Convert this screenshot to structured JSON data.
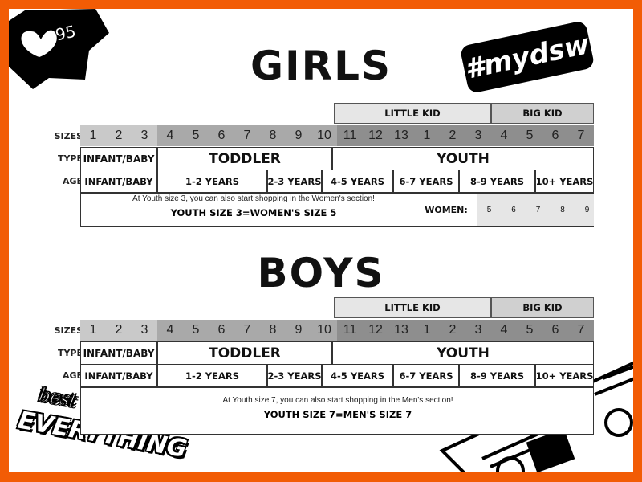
{
  "badge": {
    "icon": "heart-icon",
    "count": "95"
  },
  "sticker_top_right": "#mydsw",
  "sticker_bottom_left": {
    "line1": "best of",
    "line2": "EVERYTHING"
  },
  "colors": {
    "border": "#f25c05",
    "size_infant": "#c9c9c9",
    "size_toddler": "#a9a9a9",
    "size_youth": "#8e8e8e",
    "little_kid": "#e6e6e6",
    "big_kid": "#d0d0d0",
    "women_sizes": "#e6e6e6"
  },
  "row_labels": {
    "sizes": "SIZES",
    "type": "TYPE",
    "age": "AGE"
  },
  "groups": {
    "little_kid": "LITTLE KID",
    "big_kid": "BIG KID"
  },
  "sizes": [
    "1",
    "2",
    "3",
    "4",
    "5",
    "6",
    "7",
    "8",
    "9",
    "10",
    "11",
    "12",
    "13",
    "1",
    "2",
    "3",
    "4",
    "5",
    "6",
    "7"
  ],
  "types": [
    "INFANT/BABY",
    "TODDLER",
    "YOUTH"
  ],
  "ages": [
    "INFANT/BABY",
    "1-2 YEARS",
    "2-3 YEARS",
    "4-5 YEARS",
    "6-7 YEARS",
    "8-9 YEARS",
    "10+ YEARS"
  ],
  "girls": {
    "title": "GIRLS",
    "note_line1": "At Youth size 3, you can also start shopping in the Women's section!",
    "note_line2": "YOUTH SIZE 3=WOMEN'S SIZE 5",
    "women_label": "WOMEN:",
    "women_sizes": [
      "5",
      "6",
      "7",
      "8",
      "9"
    ]
  },
  "boys": {
    "title": "BOYS",
    "note_line1": "At Youth size 7, you can also start shopping in the Men's section!",
    "note_line2": "YOUTH SIZE 7=MEN'S SIZE 7"
  }
}
